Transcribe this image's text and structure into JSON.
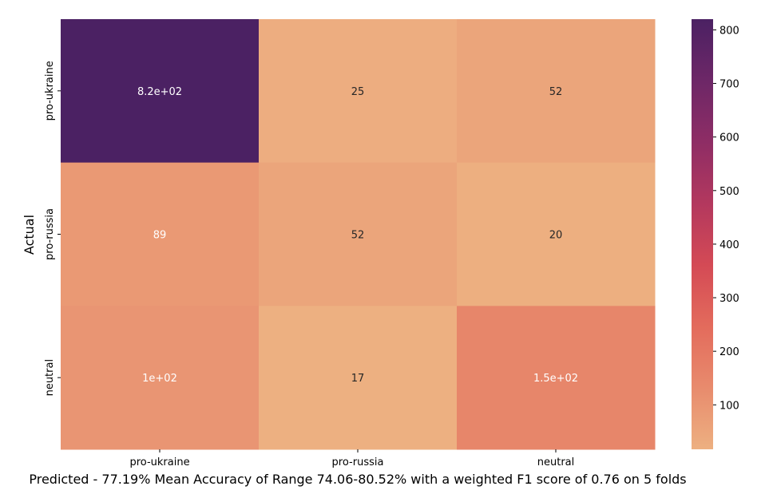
{
  "chart_data": {
    "type": "heatmap",
    "title": "",
    "xlabel": "Predicted - 77.19% Mean Accuracy of Range 74.06-80.52% with a weighted F1 score of 0.76 on 5 folds",
    "ylabel": "Actual",
    "x_categories": [
      "pro-ukraine",
      "pro-russia",
      "neutral"
    ],
    "y_categories": [
      "pro-ukraine",
      "pro-russia",
      "neutral"
    ],
    "values": [
      [
        820,
        25,
        52
      ],
      [
        89,
        52,
        20
      ],
      [
        100,
        17,
        150
      ]
    ],
    "annotations": [
      [
        "8.2e+02",
        "25",
        "52"
      ],
      [
        "89",
        "52",
        "20"
      ],
      [
        "1e+02",
        "17",
        "1.5e+02"
      ]
    ],
    "colorbar": {
      "range": [
        17,
        820
      ],
      "ticks": [
        "100",
        "200",
        "300",
        "400",
        "500",
        "600",
        "700",
        "800"
      ],
      "tick_values": [
        100,
        200,
        300,
        400,
        500,
        600,
        700,
        800
      ]
    },
    "colormap": "flare",
    "colormap_stops": [
      "#edb081",
      "#e88b6d",
      "#e36b5c",
      "#d44a55",
      "#b3385e",
      "#8e2d65",
      "#6d2767",
      "#4b2163"
    ],
    "grid": false
  }
}
